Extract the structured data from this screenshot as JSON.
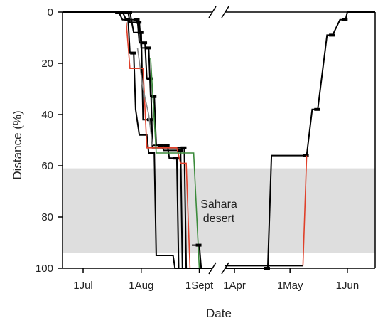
{
  "chart_data": {
    "type": "line",
    "title": "",
    "xlabel": "Date",
    "ylabel": "Distance (%)",
    "ylim": [
      100,
      0
    ],
    "y_ticks": [
      0,
      20,
      40,
      60,
      80,
      100
    ],
    "x_axis_broken": true,
    "x_segments": [
      {
        "range": [
          "2011-06-20",
          "2011-09-08"
        ],
        "tick_labels": [
          "1Jul",
          "1Aug",
          "1Sept"
        ],
        "tick_dates": [
          "2011-07-01",
          "2011-08-01",
          "2011-09-01"
        ]
      },
      {
        "range": [
          "2012-03-27",
          "2012-06-16"
        ],
        "tick_labels": [
          "1Apr",
          "1May",
          "1Jun"
        ],
        "tick_dates": [
          "2012-04-01",
          "2012-05-01",
          "2012-06-01"
        ]
      }
    ],
    "shaded_region": {
      "label": "Sahara desert",
      "y_range": [
        61,
        94
      ]
    },
    "grid": false,
    "legend": "none",
    "series": [
      {
        "color": "#000000",
        "segment": 0,
        "points": [
          [
            "2011-06-20",
            0
          ],
          [
            "2011-07-20",
            0
          ],
          [
            "2011-07-22",
            3
          ],
          [
            "2011-07-25",
            3
          ],
          [
            "2011-07-26",
            16
          ],
          [
            "2011-07-28",
            16
          ],
          [
            "2011-07-29",
            38
          ],
          [
            "2011-07-31",
            48
          ],
          [
            "2011-08-04",
            48
          ],
          [
            "2011-08-05",
            55
          ],
          [
            "2011-08-08",
            55
          ],
          [
            "2011-08-09",
            95
          ],
          [
            "2011-08-18",
            95
          ],
          [
            "2011-08-19",
            100
          ],
          [
            "2011-09-08",
            100
          ]
        ]
      },
      {
        "color": "#000000",
        "segment": 0,
        "points": [
          [
            "2011-06-20",
            0
          ],
          [
            "2011-07-22",
            0
          ],
          [
            "2011-07-24",
            3
          ],
          [
            "2011-07-30",
            3
          ],
          [
            "2011-07-31",
            12
          ],
          [
            "2011-08-03",
            12
          ],
          [
            "2011-08-04",
            26
          ],
          [
            "2011-08-06",
            26
          ],
          [
            "2011-08-07",
            52
          ],
          [
            "2011-08-12",
            52
          ],
          [
            "2011-08-13",
            54
          ],
          [
            "2011-08-22",
            54
          ],
          [
            "2011-08-23",
            100
          ],
          [
            "2011-09-08",
            100
          ]
        ]
      },
      {
        "color": "#000000",
        "segment": 0,
        "points": [
          [
            "2011-06-20",
            0
          ],
          [
            "2011-07-26",
            0
          ],
          [
            "2011-07-28",
            8
          ],
          [
            "2011-08-01",
            8
          ],
          [
            "2011-08-02",
            42
          ],
          [
            "2011-08-06",
            42
          ],
          [
            "2011-08-07",
            53
          ],
          [
            "2011-08-24",
            53
          ],
          [
            "2011-08-25",
            100
          ],
          [
            "2011-09-08",
            100
          ]
        ]
      },
      {
        "color": "#000000",
        "segment": 0,
        "points": [
          [
            "2011-06-20",
            0
          ],
          [
            "2011-07-25",
            0
          ],
          [
            "2011-07-26",
            4
          ],
          [
            "2011-07-31",
            4
          ],
          [
            "2011-08-01",
            14
          ],
          [
            "2011-08-05",
            14
          ],
          [
            "2011-08-06",
            33
          ],
          [
            "2011-08-08",
            33
          ],
          [
            "2011-08-09",
            52
          ],
          [
            "2011-08-15",
            52
          ],
          [
            "2011-08-16",
            57
          ],
          [
            "2011-08-20",
            57
          ],
          [
            "2011-08-21",
            100
          ],
          [
            "2011-09-08",
            100
          ]
        ]
      },
      {
        "color": "#e0402a",
        "segment": 0,
        "points": [
          [
            "2011-07-24",
            4
          ],
          [
            "2011-07-26",
            22
          ],
          [
            "2011-08-02",
            22
          ],
          [
            "2011-08-04",
            53
          ],
          [
            "2011-08-20",
            53
          ],
          [
            "2011-08-22",
            59
          ],
          [
            "2011-08-25",
            59
          ],
          [
            "2011-08-27",
            100
          ]
        ]
      },
      {
        "color": "#3a8a3a",
        "segment": 0,
        "points": [
          [
            "2011-08-06",
            18
          ],
          [
            "2011-08-09",
            55
          ],
          [
            "2011-08-29",
            55
          ],
          [
            "2011-09-01",
            100
          ]
        ]
      },
      {
        "color": "#888888",
        "segment": 0,
        "points": [
          [
            "2011-07-30",
            14
          ],
          [
            "2011-08-02",
            30
          ],
          [
            "2011-08-05",
            40
          ],
          [
            "2011-08-07",
            52
          ]
        ]
      },
      {
        "color": "#000000",
        "segment": 0,
        "points": [
          [
            "2011-08-28",
            91
          ],
          [
            "2011-09-01",
            91
          ],
          [
            "2011-09-02",
            100
          ]
        ]
      },
      {
        "color": "#000000",
        "segment": 1,
        "points": [
          [
            "2012-03-27",
            100
          ],
          [
            "2012-04-19",
            100
          ],
          [
            "2012-04-21",
            56
          ],
          [
            "2012-05-10",
            56
          ],
          [
            "2012-05-13",
            38
          ],
          [
            "2012-05-16",
            38
          ],
          [
            "2012-05-21",
            9
          ],
          [
            "2012-05-24",
            9
          ],
          [
            "2012-05-28",
            3
          ],
          [
            "2012-05-31",
            3
          ],
          [
            "2012-06-01",
            0
          ],
          [
            "2012-06-16",
            0
          ]
        ]
      },
      {
        "color": "#000000",
        "segment": 1,
        "points": [
          [
            "2012-03-27",
            99
          ],
          [
            "2012-05-08",
            99
          ]
        ]
      },
      {
        "color": "#e0402a",
        "segment": 1,
        "points": [
          [
            "2012-05-08",
            99
          ],
          [
            "2012-05-10",
            56
          ]
        ]
      }
    ]
  }
}
